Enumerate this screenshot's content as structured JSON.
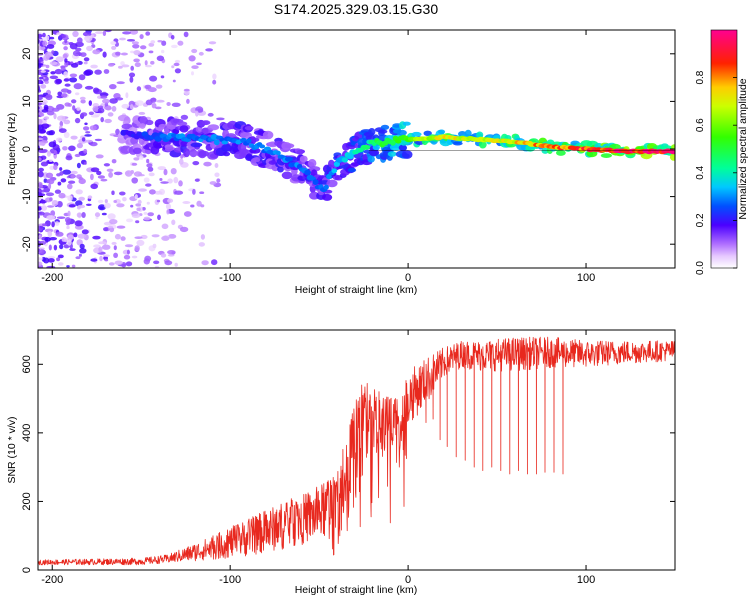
{
  "title": "S174.2025.329.03.15.G30",
  "colors": {
    "snr_line": "#e8281e",
    "axis": "#000000",
    "colormap": [
      "#ffffff",
      "#d9b8ff",
      "#8a2be2",
      "#3b00ff",
      "#0064ff",
      "#00e5ff",
      "#00ff80",
      "#7cff00",
      "#ffff00",
      "#ff9900",
      "#ff0000",
      "#ff0080"
    ]
  },
  "chart_data": [
    {
      "type": "heatmap",
      "name": "spectrogram",
      "xlabel": "Height of straight line (km)",
      "ylabel": "Frequency (Hz)",
      "xlim": [
        -208,
        150
      ],
      "ylim": [
        -25,
        25
      ],
      "xticks": [
        -200,
        -100,
        0,
        100
      ],
      "yticks": [
        -20,
        -10,
        0,
        10,
        20
      ],
      "colorbar": {
        "label": "Normalized spectral amplitude",
        "range": [
          0,
          1
        ],
        "ticks": [
          "0.0",
          "0.2",
          "0.4",
          "0.6",
          "0.8"
        ]
      },
      "ridge": {
        "height_km": [
          -160,
          -130,
          -110,
          -90,
          -75,
          -60,
          -48,
          -40,
          -30,
          -22,
          -10,
          0,
          20,
          40,
          60,
          80,
          100,
          120,
          150
        ],
        "frequency_hz": [
          3,
          2.5,
          2,
          1.5,
          -1,
          -4,
          -9,
          -3,
          -1,
          1,
          1.5,
          2,
          2.5,
          2,
          1.5,
          0.5,
          0,
          -0.5,
          -0.5
        ],
        "amplitude": [
          0.2,
          0.3,
          0.3,
          0.3,
          0.3,
          0.3,
          0.3,
          0.35,
          0.4,
          0.45,
          0.55,
          0.6,
          0.75,
          0.7,
          0.75,
          0.85,
          0.9,
          0.95,
          0.95
        ]
      },
      "noise_region_km": [
        -208,
        -150
      ]
    },
    {
      "type": "line",
      "name": "snr",
      "xlabel": "Height of straight line (km)",
      "ylabel": "SNR (10 * v/v)",
      "xlim": [
        -208,
        150
      ],
      "ylim": [
        0,
        700
      ],
      "xticks": [
        -200,
        -100,
        0,
        100
      ],
      "yticks": [
        0,
        200,
        400,
        600
      ],
      "envelope": {
        "height_km": [
          -208,
          -150,
          -135,
          -110,
          -90,
          -70,
          -55,
          -40,
          -32,
          -25,
          -15,
          -5,
          0,
          10,
          20,
          30,
          40,
          60,
          80,
          100,
          120,
          150
        ],
        "snr_low": [
          15,
          15,
          20,
          30,
          40,
          60,
          80,
          100,
          150,
          260,
          300,
          350,
          420,
          480,
          560,
          590,
          580,
          580,
          590,
          590,
          600,
          610
        ],
        "snr_high": [
          30,
          35,
          45,
          100,
          150,
          200,
          230,
          280,
          460,
          580,
          520,
          500,
          580,
          620,
          650,
          670,
          670,
          680,
          680,
          670,
          670,
          670
        ]
      },
      "dropouts": {
        "height_km": [
          10,
          14,
          18,
          22,
          27,
          32,
          37,
          42,
          47,
          52,
          57,
          62,
          67,
          72,
          77,
          82,
          87
        ],
        "snr_min": [
          430,
          440,
          380,
          360,
          330,
          320,
          300,
          290,
          300,
          290,
          280,
          290,
          280,
          280,
          285,
          285,
          280
        ]
      }
    }
  ]
}
